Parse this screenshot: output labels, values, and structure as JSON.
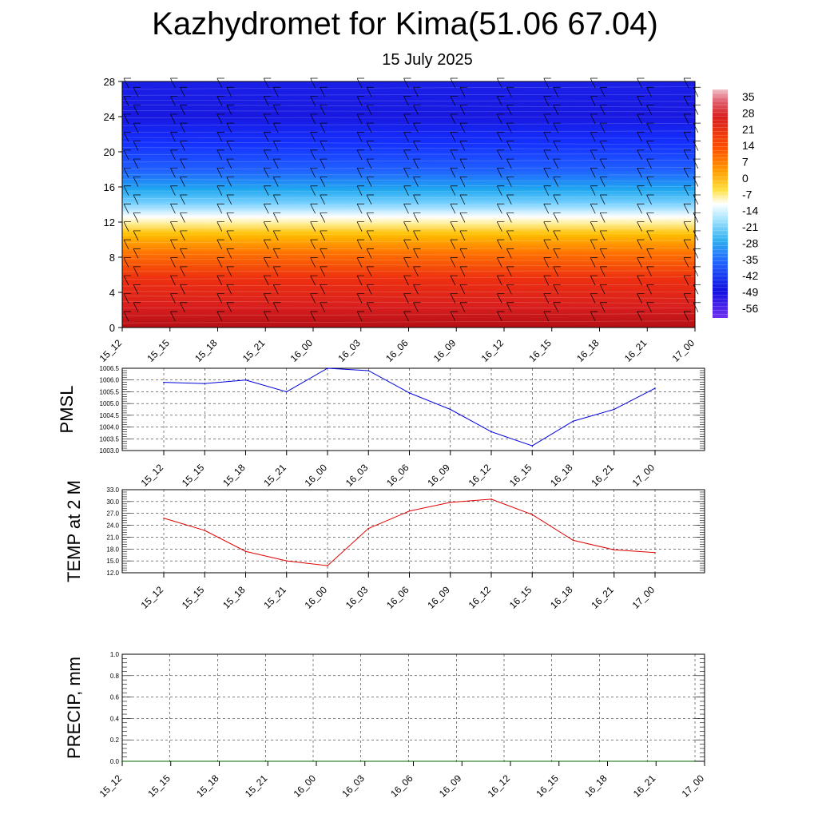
{
  "header": {
    "title": "Kazhydromet for Kima(51.06 67.04)",
    "subtitle": "15 July 2025"
  },
  "colors": {
    "pmsl_line": "#0000dd",
    "temp_line": "#e00000",
    "precip_line": "#006400",
    "grid": "#000000",
    "colorbar": [
      "#e0a0a8",
      "#d81e1e",
      "#ff6000",
      "#ffc000",
      "#fff8a0",
      "#b0e8ff",
      "#30b0f0",
      "#2060ff",
      "#1020e0",
      "#6020f0"
    ]
  },
  "chart_data": [
    {
      "type": "heatmap",
      "name": "cross-section",
      "x_ticks": [
        "15_12",
        "15_15",
        "15_18",
        "15_21",
        "16_00",
        "16_03",
        "16_06",
        "16_09",
        "16_12",
        "16_15",
        "16_18",
        "16_21",
        "17_00"
      ],
      "y_ticks": [
        "0",
        "4",
        "8",
        "12",
        "16",
        "20",
        "24",
        "28"
      ],
      "ylim": [
        0,
        28
      ],
      "colorbar_labels": [
        "35",
        "28",
        "21",
        "14",
        "7",
        "0",
        "-7",
        "-14",
        "-21",
        "-28",
        "-35",
        "-42",
        "-49",
        "-56"
      ],
      "overlay": "wind barbs"
    },
    {
      "type": "line",
      "name": "pmsl",
      "ylabel": "PMSL",
      "ylim": [
        1003.0,
        1006.5
      ],
      "y_ticks": [
        "1006.5",
        "1006.0",
        "1005.5",
        "1005.0",
        "1004.5",
        "1004.0",
        "1003.5",
        "1003.0"
      ],
      "x_ticks": [
        "15_12",
        "15_15",
        "15_18",
        "15_21",
        "16_00",
        "16_03",
        "16_06",
        "16_09",
        "16_12",
        "16_15",
        "16_18",
        "16_21",
        "17_00"
      ],
      "values": [
        1005.9,
        1005.85,
        1006.0,
        1005.5,
        1006.5,
        1006.4,
        1005.45,
        1004.75,
        1003.8,
        1003.2,
        1004.25,
        1004.75,
        1005.65
      ]
    },
    {
      "type": "line",
      "name": "temp",
      "ylabel": "TEMP at 2 M",
      "ylim": [
        12.0,
        33.0
      ],
      "y_ticks": [
        "33.0",
        "30.0",
        "27.0",
        "24.0",
        "21.0",
        "18.0",
        "15.0",
        "12.0"
      ],
      "x_ticks": [
        "15_12",
        "15_15",
        "15_18",
        "15_21",
        "16_00",
        "16_03",
        "16_06",
        "16_09",
        "16_12",
        "16_15",
        "16_18",
        "16_21",
        "17_00"
      ],
      "values": [
        25.8,
        22.7,
        17.4,
        15.0,
        13.8,
        23.2,
        27.6,
        29.8,
        30.6,
        26.7,
        20.2,
        17.8,
        17.1
      ]
    },
    {
      "type": "line",
      "name": "precip",
      "ylabel": "PRECIP, mm",
      "ylim": [
        0.0,
        1.0
      ],
      "y_ticks": [
        "1.0",
        "0.8",
        "0.6",
        "0.4",
        "0.2",
        "0.0"
      ],
      "x_ticks": [
        "15_12",
        "15_15",
        "15_18",
        "15_21",
        "16_00",
        "16_03",
        "16_06",
        "16_09",
        "16_12",
        "16_15",
        "16_18",
        "16_21",
        "17_00"
      ],
      "values": [
        0,
        0,
        0,
        0,
        0,
        0,
        0,
        0,
        0,
        0,
        0,
        0,
        0
      ]
    }
  ]
}
